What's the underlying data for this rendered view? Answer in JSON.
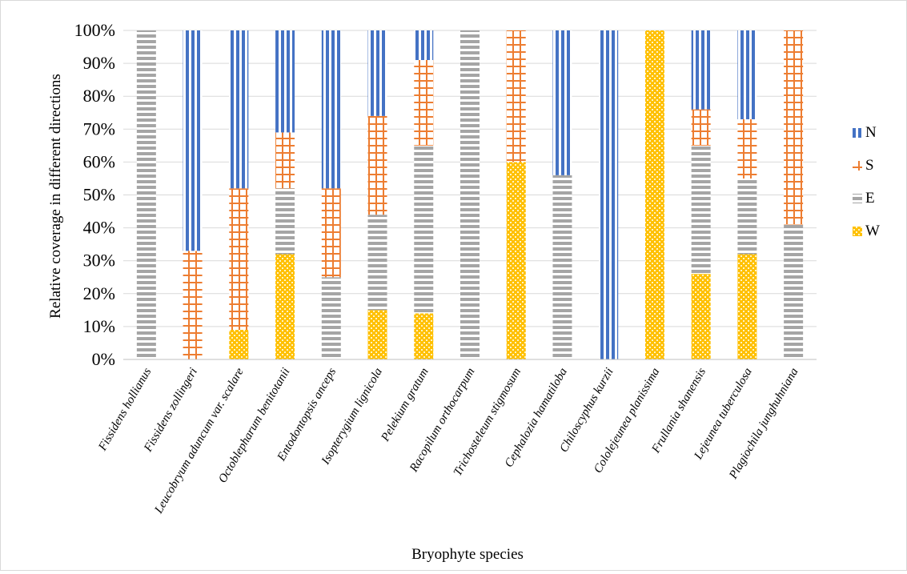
{
  "chart_data": {
    "type": "stacked-bar-100",
    "xlabel": "Bryophyte species",
    "ylabel": "Relative coverage in different directions",
    "ylim": [
      0,
      100
    ],
    "yticks": [
      "0%",
      "10%",
      "20%",
      "30%",
      "40%",
      "50%",
      "60%",
      "70%",
      "80%",
      "90%",
      "100%"
    ],
    "categories": [
      "Fissidens hollianus",
      "Fissidens zollingeri",
      "Leucobryum aduncum var. scalare",
      "Octoblepharum benitotanii",
      "Entodontopsis anceps",
      "Isopterygium lignicola",
      "Pelekium gratum",
      "Racopilum orthocarpum",
      "Trichosteleum stigmosum",
      "Cephalozia hamatiloba",
      "Chiloscyphus kurzii",
      "Cololejeunea planissima",
      "Frullania shanensis",
      "Lejeunea tuberculosa",
      "Plagiochila junghuhniana"
    ],
    "series": [
      {
        "name": "W",
        "color": "#ffc000",
        "pattern": "checker",
        "values": [
          0,
          0,
          9,
          32,
          0,
          15,
          14,
          0,
          60,
          0,
          0,
          100,
          26,
          32,
          0
        ]
      },
      {
        "name": "E",
        "color": "#a5a5a5",
        "pattern": "horizontal",
        "values": [
          100,
          0,
          0,
          20,
          25,
          29,
          51,
          100,
          0,
          56,
          0,
          0,
          39,
          23,
          41
        ]
      },
      {
        "name": "S",
        "color": "#ed7d31",
        "pattern": "grid",
        "values": [
          0,
          33,
          43,
          17,
          27,
          30,
          26,
          0,
          40,
          0,
          0,
          0,
          11,
          18,
          59
        ]
      },
      {
        "name": "N",
        "color": "#4472c4",
        "pattern": "vertical",
        "values": [
          0,
          67,
          48,
          31,
          48,
          26,
          9,
          0,
          0,
          44,
          100,
          0,
          24,
          27,
          0
        ]
      }
    ],
    "legend": {
      "position": "right",
      "order": [
        "N",
        "S",
        "E",
        "W"
      ]
    },
    "grid": true
  }
}
